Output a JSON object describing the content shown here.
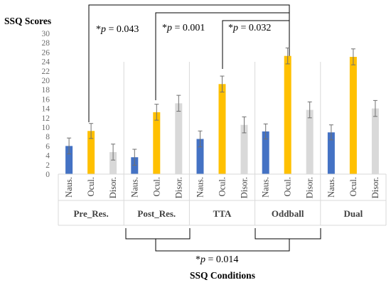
{
  "chart_data": {
    "type": "bar",
    "title": "SSQ Scores",
    "xlabel": "SSQ Conditions",
    "ylabel": "",
    "ylim": [
      0,
      30
    ],
    "yticks": [
      "0",
      "2",
      "4",
      "6",
      "8",
      "10",
      "12",
      "14",
      "16",
      "18",
      "20",
      "22",
      "24",
      "26",
      "28",
      "30"
    ],
    "groups": [
      "Pre_Res.",
      "Post_Res.",
      "TTA",
      "Oddball",
      "Dual"
    ],
    "subcategories": [
      "Naus.",
      "Ocul.",
      "Disor."
    ],
    "colors": {
      "Naus.": "#4472C4",
      "Ocul.": "#FFC000",
      "Disor.": "#D9D9D9"
    },
    "series": [
      {
        "name": "Naus.",
        "values": [
          6.0,
          3.6,
          7.5,
          9.1,
          8.9
        ],
        "errors": [
          1.7,
          1.7,
          1.7,
          1.6,
          1.6
        ]
      },
      {
        "name": "Ocul.",
        "values": [
          9.2,
          13.2,
          19.2,
          25.2,
          25.0
        ],
        "errors": [
          1.6,
          1.7,
          1.7,
          1.7,
          1.7
        ]
      },
      {
        "name": "Disor.",
        "values": [
          4.7,
          15.1,
          10.5,
          13.7,
          14.0
        ],
        "errors": [
          1.7,
          1.7,
          1.7,
          1.7,
          1.7
        ]
      }
    ],
    "grid": false,
    "legend": "none",
    "annotations": [
      {
        "star": "*",
        "p": "p",
        "val": " = 0.043"
      },
      {
        "star": "*",
        "p": "p",
        "val": " = 0.001"
      },
      {
        "star": "*",
        "p": "p",
        "val": " = 0.032"
      },
      {
        "star": "*",
        "p": "p",
        "val": " = 0.014"
      }
    ]
  }
}
